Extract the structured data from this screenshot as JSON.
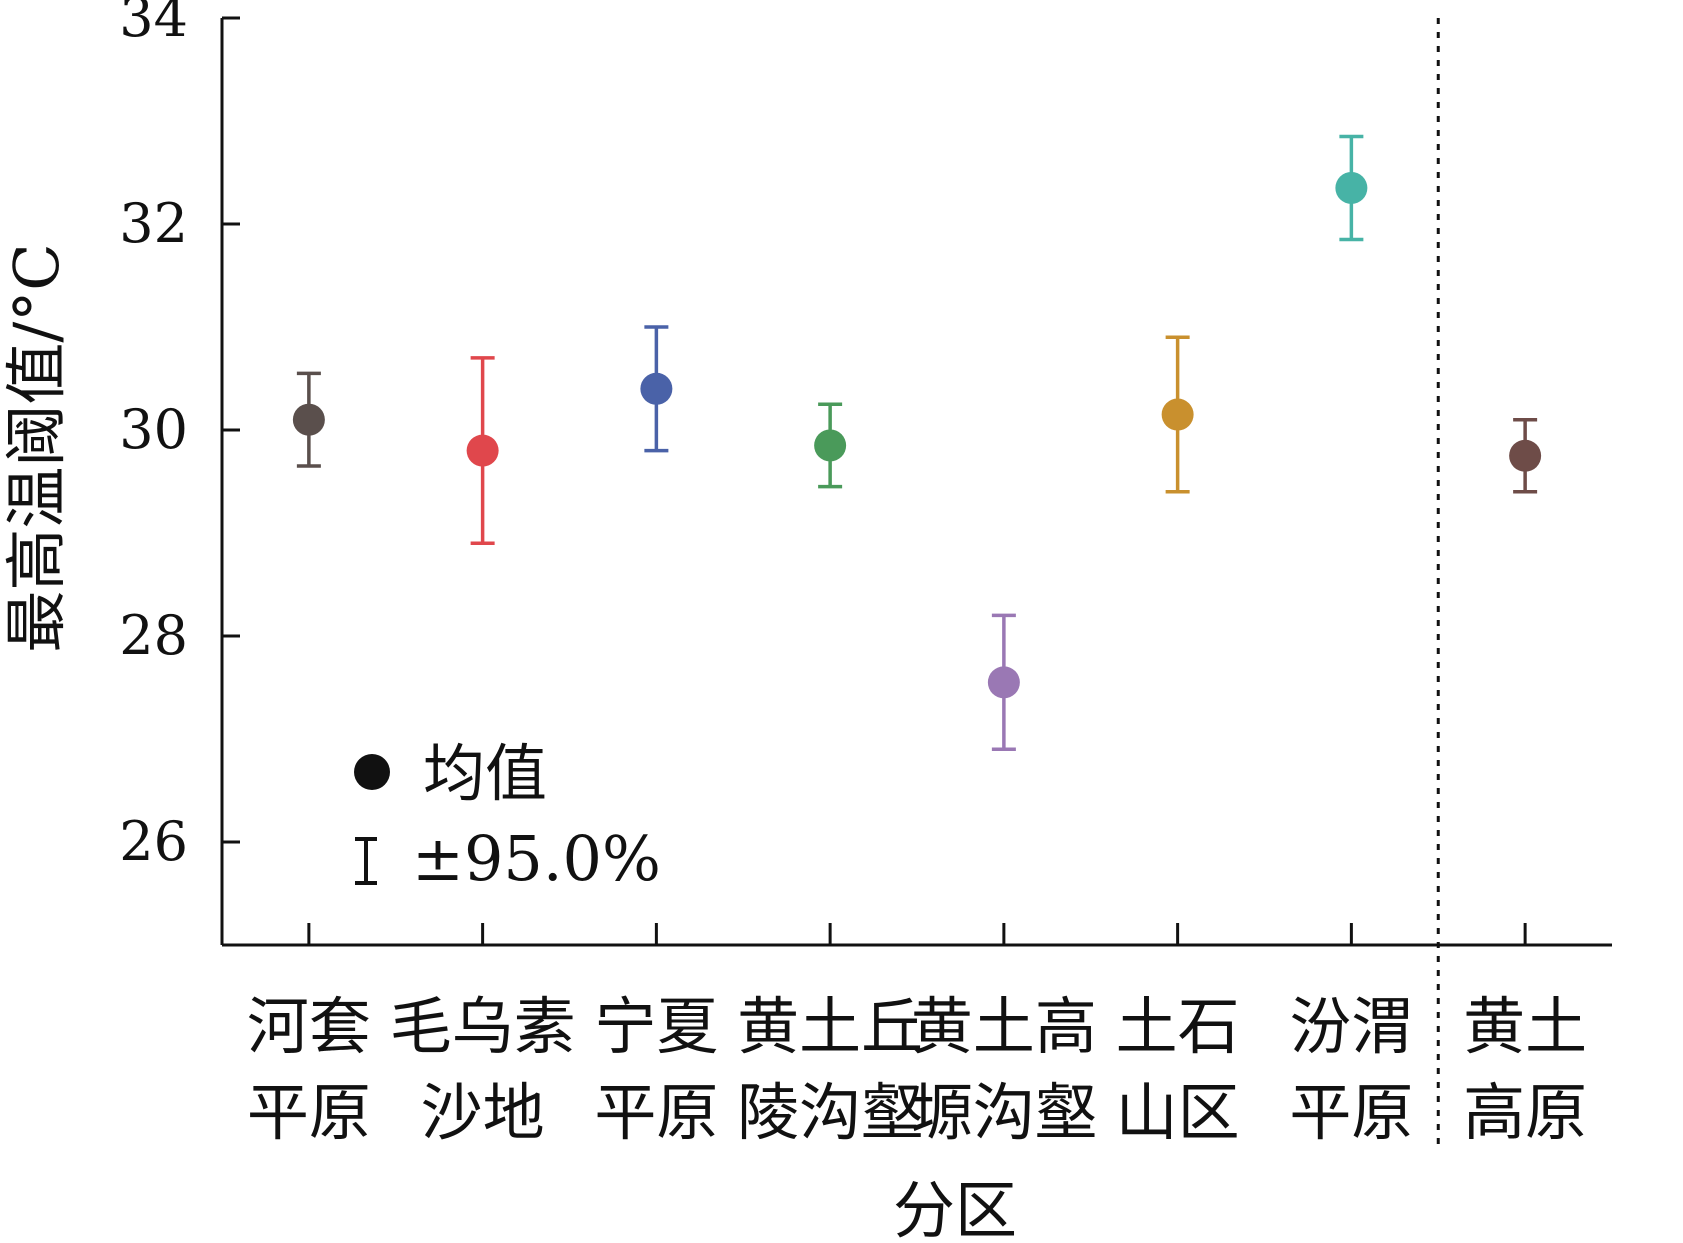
{
  "chart_data": {
    "type": "scatter",
    "title": "",
    "xlabel": "分区",
    "ylabel": "最高温阈值/°C",
    "ylim": [
      25,
      34
    ],
    "yticks": [
      26,
      28,
      30,
      32,
      34
    ],
    "grid": false,
    "legend": {
      "placement": "bottom-left",
      "entries": [
        {
          "marker": "dot",
          "label": "均值"
        },
        {
          "marker": "errorbar",
          "label": "±95.0%"
        }
      ]
    },
    "categories": [
      {
        "lines": [
          "河套",
          "平原"
        ],
        "color": "#5a4f4c",
        "mean": 30.1,
        "lower": 29.65,
        "upper": 30.55
      },
      {
        "lines": [
          "毛乌素",
          "沙地"
        ],
        "color": "#e0474c",
        "mean": 29.8,
        "lower": 28.9,
        "upper": 30.7
      },
      {
        "lines": [
          "宁夏",
          "平原"
        ],
        "color": "#4a62a8",
        "mean": 30.4,
        "lower": 29.8,
        "upper": 31.0
      },
      {
        "lines": [
          "黄土丘",
          "陵沟壑"
        ],
        "color": "#4a9a5a",
        "mean": 29.85,
        "lower": 29.45,
        "upper": 30.25
      },
      {
        "lines": [
          "黄土高",
          "塬沟壑"
        ],
        "color": "#9a78b4",
        "mean": 27.55,
        "lower": 26.9,
        "upper": 28.2
      },
      {
        "lines": [
          "土石",
          "山区"
        ],
        "color": "#c9902e",
        "mean": 30.15,
        "lower": 29.4,
        "upper": 30.9
      },
      {
        "lines": [
          "汾渭",
          "平原"
        ],
        "color": "#47b3a6",
        "mean": 32.35,
        "lower": 31.85,
        "upper": 32.85
      },
      {
        "lines": [
          "黄土",
          "高原"
        ],
        "color": "#6e4c48",
        "mean": 29.75,
        "lower": 29.4,
        "upper": 30.1
      }
    ],
    "separator_after_index": 6
  }
}
